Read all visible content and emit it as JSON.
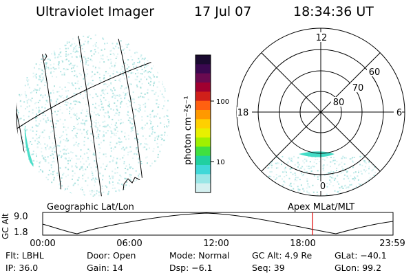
{
  "header": {
    "instrument": "Ultraviolet Imager",
    "date": "17 Jul 07",
    "time": "18:34:36 UT"
  },
  "colorbar": {
    "unit_label": "photon cm⁻²s⁻¹",
    "tick_labels": [
      "100",
      "10"
    ],
    "colors": [
      "#1a0a30",
      "#3a0850",
      "#6a0a50",
      "#a00030",
      "#d0201a",
      "#ff6010",
      "#ff9900",
      "#ffd000",
      "#e8f000",
      "#a0f000",
      "#40e040",
      "#20d0a0",
      "#40d8d8",
      "#9ae6e6",
      "#d4f0f0"
    ]
  },
  "geographic_panel": {
    "label": "Geographic Lat/Lon",
    "aurora_color": "#2ed8c0"
  },
  "polar_panel": {
    "label": "Apex MLat/MLT",
    "mlt_labels": {
      "top": "12",
      "left": "18",
      "right": "6",
      "bottom": "0"
    },
    "mlat_labels": [
      "60",
      "70",
      "80"
    ]
  },
  "orbit_plot": {
    "ylabel": "GC Alt",
    "yticks": [
      "9.0",
      "1.8"
    ],
    "xticks": [
      "00:00",
      "06:00",
      "12:00",
      "18:00",
      "23:59"
    ],
    "marker_time": "18:34:36",
    "marker_color": "#e00000"
  },
  "info": {
    "row1": [
      {
        "label": "Flt:",
        "value": "LBHL"
      },
      {
        "label": "Door:",
        "value": "Open"
      },
      {
        "label": "Mode:",
        "value": "Normal"
      },
      {
        "label": "GC Alt:",
        "value": "4.9 Re"
      },
      {
        "label": "GLat:",
        "value": "−40.1"
      }
    ],
    "row2": [
      {
        "label": "IP:",
        "value": "36.0"
      },
      {
        "label": "Gain:",
        "value": "14"
      },
      {
        "label": "Dsp:",
        "value": "−6.1"
      },
      {
        "label": "Seq:",
        "value": "39"
      },
      {
        "label": "GLon:",
        "value": "99.2"
      }
    ]
  }
}
